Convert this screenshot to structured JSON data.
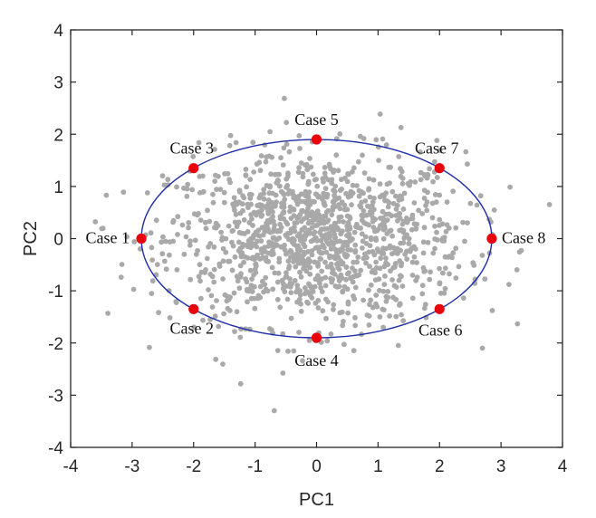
{
  "chart_data": {
    "type": "scatter",
    "title": "",
    "xlabel": "PC1",
    "ylabel": "PC2",
    "xlim": [
      -4,
      4
    ],
    "ylim": [
      -4,
      4
    ],
    "xticks": [
      "-4",
      "-3",
      "-2",
      "-1",
      "0",
      "1",
      "2",
      "3",
      "4"
    ],
    "yticks": [
      "-4",
      "-3",
      "-2",
      "-1",
      "0",
      "1",
      "2",
      "3",
      "4"
    ],
    "grid": false,
    "legend": "none",
    "colors": {
      "scatter": "#a9a9a9",
      "ellipse": "#1f2fa8",
      "case_points": "#e8000b",
      "axis": "#262626"
    },
    "ellipse": {
      "center": [
        0,
        0
      ],
      "semi_axis_x": 2.85,
      "semi_axis_y": 1.9
    },
    "cases": [
      {
        "label": "Case 1",
        "x": -2.85,
        "y": 0
      },
      {
        "label": "Case 2",
        "x": -2.0,
        "y": -1.35
      },
      {
        "label": "Case 3",
        "x": -2.0,
        "y": 1.35
      },
      {
        "label": "Case 4",
        "x": 0,
        "y": -1.9
      },
      {
        "label": "Case 5",
        "x": 0,
        "y": 1.9
      },
      {
        "label": "Case 6",
        "x": 2.0,
        "y": -1.35
      },
      {
        "label": "Case 7",
        "x": 2.0,
        "y": 1.35
      },
      {
        "label": "Case 8",
        "x": 2.85,
        "y": 0
      }
    ],
    "samples": {
      "n": 1300,
      "mean": [
        0,
        0
      ],
      "std": [
        1.2,
        0.82
      ]
    }
  }
}
